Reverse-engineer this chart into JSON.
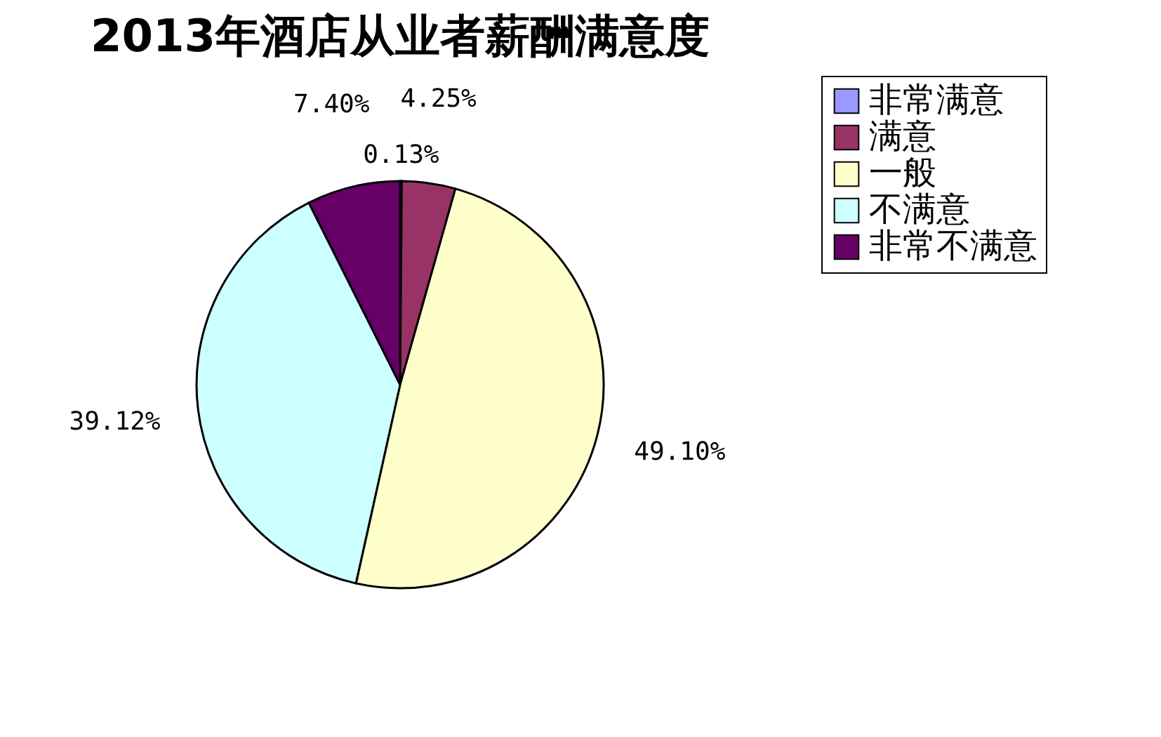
{
  "chart_data": {
    "type": "pie",
    "title": "2013年酒店从业者薪酬满意度",
    "categories": [
      "非常满意",
      "满意",
      "一般",
      "不满意",
      "非常不满意"
    ],
    "values": [
      0.13,
      4.25,
      49.1,
      39.12,
      7.4
    ],
    "colors": [
      "#9999ff",
      "#993366",
      "#ffffcc",
      "#ccffff",
      "#660066"
    ],
    "value_labels": [
      "0.13%",
      "4.25%",
      "49.10%",
      "39.12%",
      "7.40%"
    ],
    "legend": "right"
  }
}
